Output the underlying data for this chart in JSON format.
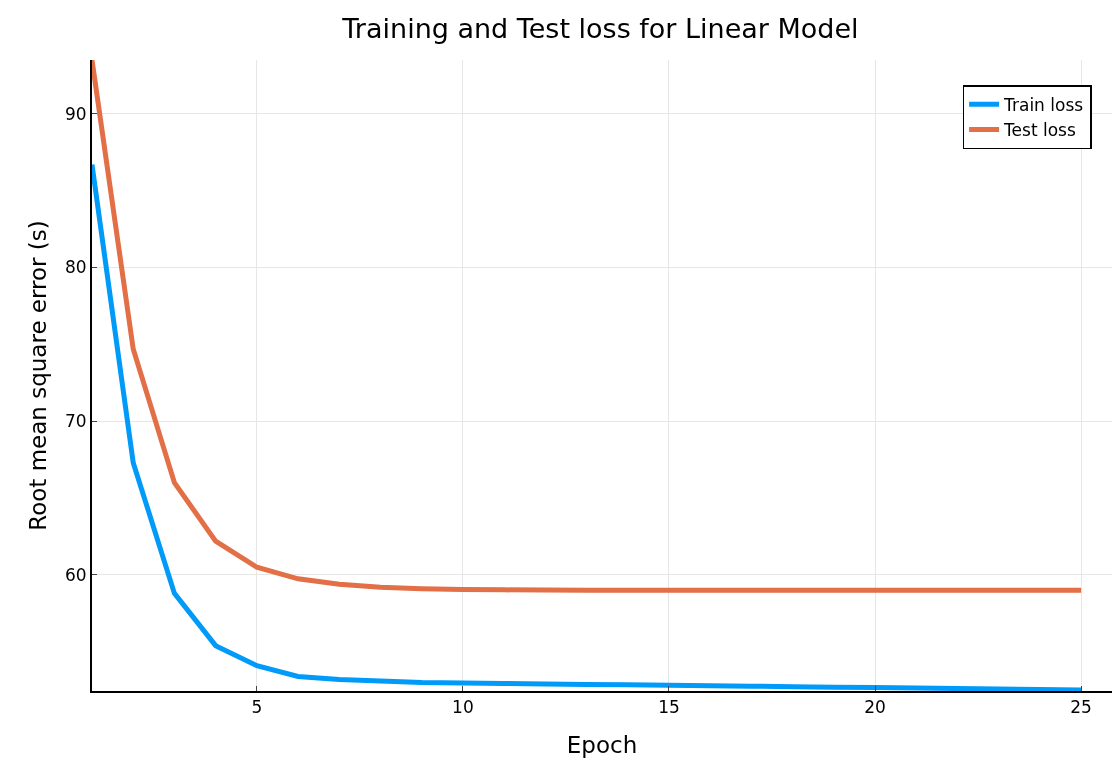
{
  "chart_data": {
    "type": "line",
    "title": "Training and Test loss for Linear Model",
    "xlabel": "Epoch",
    "ylabel": "Root mean square error (s)",
    "x": [
      1,
      2,
      3,
      4,
      5,
      6,
      7,
      8,
      9,
      10,
      11,
      12,
      13,
      14,
      15,
      16,
      17,
      18,
      19,
      20,
      21,
      22,
      23,
      24,
      25
    ],
    "series": [
      {
        "name": "Train loss",
        "color": "#009af9",
        "values": [
          86.7,
          67.3,
          58.8,
          55.4,
          54.1,
          53.4,
          53.2,
          53.1,
          53.0,
          52.97,
          52.94,
          52.91,
          52.88,
          52.85,
          52.82,
          52.79,
          52.76,
          52.73,
          52.7,
          52.67,
          52.64,
          52.61,
          52.58,
          52.55,
          52.52
        ]
      },
      {
        "name": "Test loss",
        "color": "#e26f46",
        "values": [
          93.5,
          74.7,
          66.0,
          62.2,
          60.5,
          59.75,
          59.4,
          59.2,
          59.1,
          59.05,
          59.03,
          59.02,
          59.01,
          59.0,
          59.0,
          59.0,
          59.0,
          59.0,
          59.0,
          59.0,
          59.0,
          59.0,
          59.0,
          59.0,
          59.0
        ]
      }
    ],
    "xlim": [
      1,
      25.75
    ],
    "xticks": [
      5,
      10,
      15,
      20,
      25
    ],
    "ylim": [
      52.45,
      93.5
    ],
    "yticks": [
      60,
      70,
      80,
      90
    ],
    "grid": true,
    "legend": "top right",
    "marker": "none",
    "line_style": "solid"
  }
}
